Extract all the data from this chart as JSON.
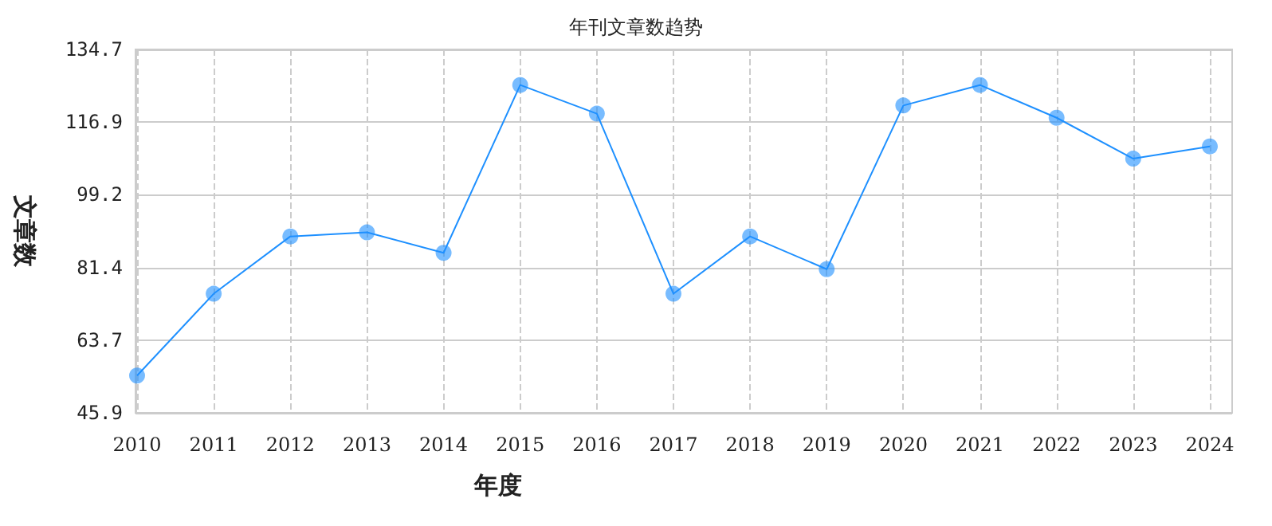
{
  "chart_data": {
    "type": "line",
    "title": "年刊文章数趋势",
    "xlabel": "年度",
    "ylabel": "文章数",
    "categories": [
      "2010",
      "2011",
      "2012",
      "2013",
      "2014",
      "2015",
      "2016",
      "2017",
      "2018",
      "2019",
      "2020",
      "2021",
      "2022",
      "2023",
      "2024"
    ],
    "series": [
      {
        "color": "#1e90ff",
        "values": [
          55,
          75,
          89,
          90,
          85,
          126,
          119,
          75,
          89,
          81,
          121,
          126,
          118,
          108,
          111
        ]
      }
    ],
    "ylim": [
      45.9,
      134.7
    ],
    "yticks": [
      45.9,
      63.7,
      81.4,
      99.2,
      116.9,
      134.7
    ],
    "grid": true,
    "marker": "circle",
    "line_style": "solid"
  }
}
